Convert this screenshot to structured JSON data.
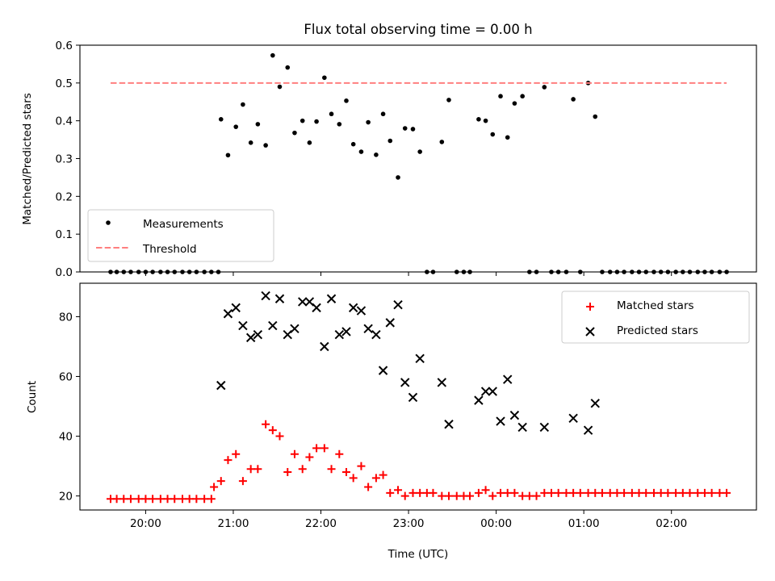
{
  "title": "Flux total observing time = 0.00 h",
  "xlabel": "Time (UTC)",
  "x_tick_labels": [
    "20:00",
    "21:00",
    "22:00",
    "23:00",
    "00:00",
    "01:00",
    "02:00"
  ],
  "chart_data": [
    {
      "type": "scatter",
      "ylabel": "Matched/Predicted stars",
      "ylim": [
        0,
        0.6
      ],
      "yticks": [
        0,
        0.1,
        0.2,
        0.3,
        0.4,
        0.5,
        0.6
      ],
      "ytick_labels": [
        "0.0",
        "0.1",
        "0.2",
        "0.3",
        "0.4",
        "0.5",
        "0.6"
      ],
      "x_unit": "hours since 20:00 UTC",
      "xlim": [
        -0.75,
        6.97
      ],
      "legend_position": "lower-left",
      "series": [
        {
          "name": "Measurements",
          "marker": "dot",
          "color": "#000000",
          "x": [
            -0.4,
            -0.33,
            -0.25,
            -0.17,
            -0.08,
            0,
            0.08,
            0.17,
            0.25,
            0.33,
            0.42,
            0.5,
            0.58,
            0.67,
            0.75,
            0.83,
            0.86,
            0.94,
            1.03,
            1.11,
            1.2,
            1.28,
            1.37,
            1.45,
            1.53,
            1.62,
            1.7,
            1.79,
            1.87,
            1.95,
            2.04,
            2.12,
            2.21,
            2.29,
            2.37,
            2.46,
            2.54,
            2.63,
            2.71,
            2.79,
            2.88,
            2.96,
            3.05,
            3.13,
            3.21,
            3.28,
            3.38,
            3.46,
            3.55,
            3.63,
            3.7,
            3.8,
            3.88,
            3.96,
            4.05,
            4.13,
            4.21,
            4.3,
            4.38,
            4.46,
            4.55,
            4.63,
            4.71,
            4.8,
            4.88,
            4.96,
            5.05,
            5.13,
            5.21,
            5.3,
            5.38,
            5.46,
            5.55,
            5.63,
            5.71,
            5.8,
            5.88,
            5.96,
            6.05,
            6.13,
            6.21,
            6.3,
            6.38,
            6.46,
            6.55,
            6.63
          ],
          "y": [
            0,
            0,
            0,
            0,
            0,
            0,
            0,
            0,
            0,
            0,
            0,
            0,
            0,
            0,
            0,
            0,
            0.404,
            0.309,
            0.384,
            0.443,
            0.342,
            0.391,
            0.335,
            0.573,
            0.49,
            0.541,
            0.368,
            0.4,
            0.342,
            0.398,
            0.514,
            0.418,
            0.391,
            0.453,
            0.338,
            0.318,
            0.396,
            0.31,
            0.418,
            0.347,
            0.25,
            0.38,
            0.378,
            0.318,
            0,
            0,
            0.344,
            0.455,
            0,
            0,
            0,
            0.404,
            0.4,
            0.364,
            0.465,
            0.356,
            0.446,
            0.465,
            0,
            0,
            0.489,
            0,
            0,
            0,
            0.457,
            0,
            0.5,
            0.411,
            0,
            0,
            0,
            0,
            0,
            0,
            0,
            0,
            0,
            0,
            0,
            0,
            0,
            0,
            0,
            0,
            0,
            0
          ]
        },
        {
          "name": "Threshold",
          "marker": "dashed-line",
          "color": "#ff7f7f",
          "x": [
            -0.4,
            6.63
          ],
          "y": [
            0.5,
            0.5
          ]
        }
      ]
    },
    {
      "type": "scatter",
      "ylabel": "Count",
      "ylim": [
        15.3,
        91.2
      ],
      "yticks": [
        20,
        40,
        60,
        80
      ],
      "ytick_labels": [
        "20",
        "40",
        "60",
        "80"
      ],
      "x_unit": "hours since 20:00 UTC",
      "xlim": [
        -0.75,
        6.97
      ],
      "legend_position": "top-right",
      "series": [
        {
          "name": "Matched stars",
          "marker": "plus",
          "color": "#ff0000",
          "x": [
            -0.4,
            -0.33,
            -0.25,
            -0.17,
            -0.08,
            0,
            0.08,
            0.17,
            0.25,
            0.33,
            0.42,
            0.5,
            0.58,
            0.67,
            0.75,
            0.78,
            0.86,
            0.94,
            1.03,
            1.11,
            1.2,
            1.28,
            1.37,
            1.45,
            1.53,
            1.62,
            1.7,
            1.79,
            1.87,
            1.95,
            2.04,
            2.12,
            2.21,
            2.29,
            2.37,
            2.46,
            2.54,
            2.63,
            2.71,
            2.79,
            2.88,
            2.96,
            3.05,
            3.13,
            3.21,
            3.28,
            3.38,
            3.46,
            3.55,
            3.63,
            3.7,
            3.8,
            3.88,
            3.96,
            4.05,
            4.13,
            4.21,
            4.3,
            4.38,
            4.46,
            4.55,
            4.63,
            4.71,
            4.8,
            4.88,
            4.96,
            5.05,
            5.13,
            5.21,
            5.3,
            5.38,
            5.46,
            5.55,
            5.63,
            5.71,
            5.8,
            5.88,
            5.96,
            6.05,
            6.13,
            6.21,
            6.3,
            6.38,
            6.46,
            6.55,
            6.63
          ],
          "y": [
            19,
            19,
            19,
            19,
            19,
            19,
            19,
            19,
            19,
            19,
            19,
            19,
            19,
            19,
            19,
            23,
            25,
            32,
            34,
            25,
            29,
            29,
            44,
            42,
            40,
            28,
            34,
            29,
            33,
            36,
            36,
            29,
            34,
            28,
            26,
            30,
            23,
            26,
            27,
            21,
            22,
            20,
            21,
            21,
            21,
            21,
            20,
            20,
            20,
            20,
            20,
            21,
            22,
            20,
            21,
            21,
            21,
            20,
            20,
            20,
            21,
            21,
            21,
            21,
            21,
            21,
            21,
            21,
            21,
            21,
            21,
            21,
            21,
            21,
            21,
            21,
            21,
            21,
            21,
            21,
            21,
            21,
            21,
            21,
            21,
            21
          ]
        },
        {
          "name": "Predicted stars",
          "marker": "cross",
          "color": "#000000",
          "x": [
            0.86,
            0.94,
            1.03,
            1.11,
            1.2,
            1.28,
            1.37,
            1.45,
            1.53,
            1.62,
            1.7,
            1.79,
            1.87,
            1.95,
            2.04,
            2.12,
            2.21,
            2.29,
            2.37,
            2.46,
            2.54,
            2.63,
            2.71,
            2.79,
            2.88,
            2.96,
            3.05,
            3.13,
            3.38,
            3.46,
            3.8,
            3.88,
            3.96,
            4.05,
            4.13,
            4.21,
            4.3,
            4.55,
            4.88,
            5.05,
            5.13
          ],
          "y": [
            57,
            81,
            83,
            77,
            73,
            74,
            87,
            77,
            86,
            74,
            76,
            85,
            85,
            83,
            70,
            86,
            74,
            75,
            83,
            82,
            76,
            74,
            62,
            78,
            84,
            58,
            53,
            66,
            58,
            44,
            52,
            55,
            55,
            45,
            59,
            47,
            43,
            43,
            46,
            42,
            51
          ]
        }
      ]
    }
  ]
}
